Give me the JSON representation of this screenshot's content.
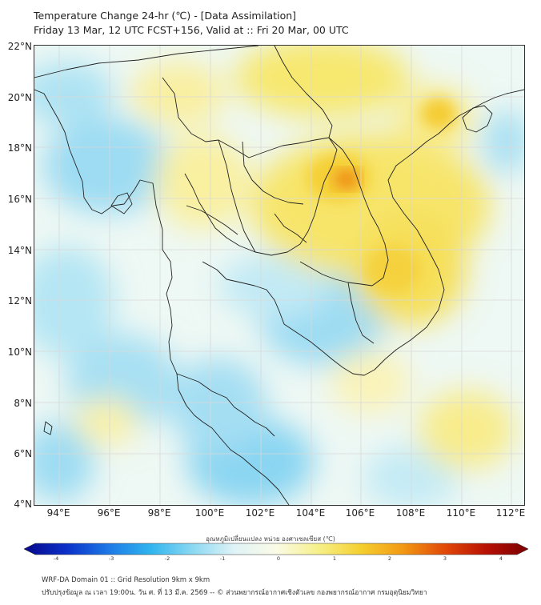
{
  "title": {
    "line1": "Temperature Change 24-hr (℃) - [Data Assimilation]",
    "line2": "Friday 13 Mar, 12 UTC FCST+156, Valid at :: Fri 20 Mar, 00 UTC"
  },
  "map": {
    "lat_labels": [
      "22°N",
      "20°N",
      "18°N",
      "16°N",
      "14°N",
      "12°N",
      "10°N",
      "8°N",
      "6°N",
      "4°N"
    ],
    "lon_labels": [
      "94°E",
      "96°E",
      "98°E",
      "100°E",
      "102°E",
      "104°E",
      "106°E",
      "108°E",
      "110°E",
      "112°E"
    ],
    "lat_range": [
      4,
      22
    ],
    "lon_range": [
      93,
      112.5
    ],
    "field_description": "warm anomaly over Laos/NE Thailand/Vietnam, cool anomaly over Gulf of Thailand & Andaman Sea",
    "hotspot_value": 2.5
  },
  "colorbar": {
    "title": "อุณหภูมิเปลี่ยนแปลง หน่วย องศาเซลเซียส (℃)",
    "ticks": [
      "-4",
      "-3",
      "-2",
      "-1",
      "0",
      "1",
      "2",
      "3",
      "4"
    ],
    "min": -4,
    "max": 4,
    "colors": [
      "#08088a",
      "#0a2fc8",
      "#1e78e6",
      "#2fb4ee",
      "#8ad8f2",
      "#dff3f7",
      "#fbfbe6",
      "#f6f08a",
      "#f5d030",
      "#f29a14",
      "#e24a08",
      "#b81004",
      "#7a0000"
    ]
  },
  "footer": {
    "line1": "WRF-DA Domain 01 :: Grid Resolution 9km x 9km",
    "line2": "ปรับปรุงข้อมูล ณ เวลา 19:00น. วัน ศ. ที่ 13 มี.ค. 2569 -- © ส่วนพยากรณ์อากาศเชิงตัวเลข กองพยากรณ์อากาศ กรมอุตุนิยมวิทยา"
  }
}
